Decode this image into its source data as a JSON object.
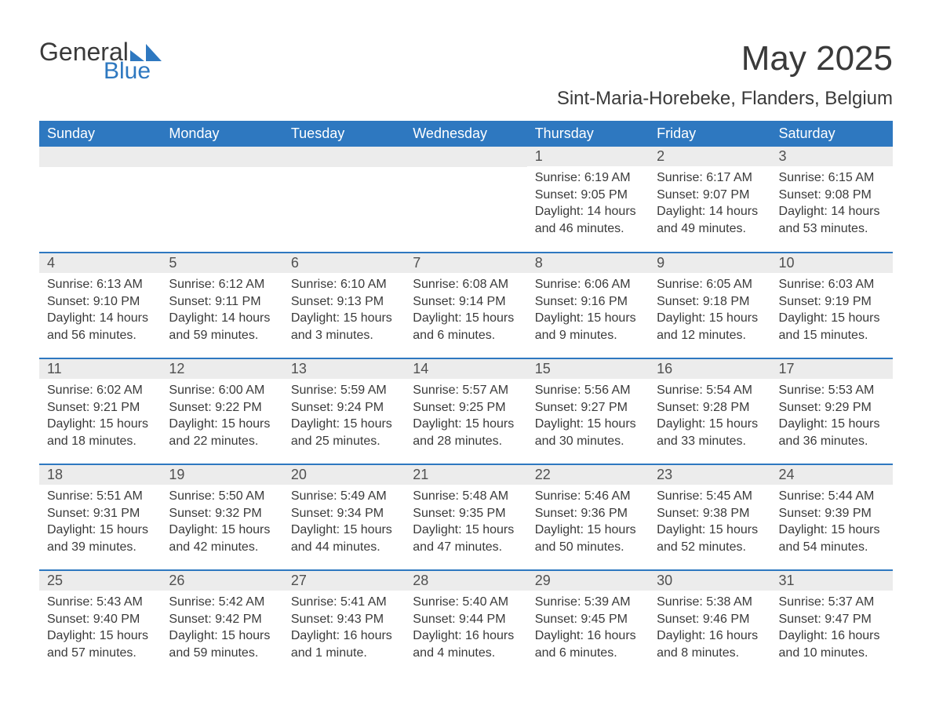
{
  "logo": {
    "general": "General",
    "blue": "Blue",
    "shape_color": "#2e78c0"
  },
  "title": "May 2025",
  "location": "Sint-Maria-Horebeke, Flanders, Belgium",
  "colors": {
    "header_bg": "#2e78c0",
    "header_text": "#ffffff",
    "daynum_bg": "#ececec",
    "row_divider": "#2e78c0",
    "body_text": "#3a3a3a"
  },
  "weekdays": [
    "Sunday",
    "Monday",
    "Tuesday",
    "Wednesday",
    "Thursday",
    "Friday",
    "Saturday"
  ],
  "weeks": [
    [
      null,
      null,
      null,
      null,
      {
        "n": "1",
        "sr": "6:19 AM",
        "ss": "9:05 PM",
        "dl": "14 hours and 46 minutes."
      },
      {
        "n": "2",
        "sr": "6:17 AM",
        "ss": "9:07 PM",
        "dl": "14 hours and 49 minutes."
      },
      {
        "n": "3",
        "sr": "6:15 AM",
        "ss": "9:08 PM",
        "dl": "14 hours and 53 minutes."
      }
    ],
    [
      {
        "n": "4",
        "sr": "6:13 AM",
        "ss": "9:10 PM",
        "dl": "14 hours and 56 minutes."
      },
      {
        "n": "5",
        "sr": "6:12 AM",
        "ss": "9:11 PM",
        "dl": "14 hours and 59 minutes."
      },
      {
        "n": "6",
        "sr": "6:10 AM",
        "ss": "9:13 PM",
        "dl": "15 hours and 3 minutes."
      },
      {
        "n": "7",
        "sr": "6:08 AM",
        "ss": "9:14 PM",
        "dl": "15 hours and 6 minutes."
      },
      {
        "n": "8",
        "sr": "6:06 AM",
        "ss": "9:16 PM",
        "dl": "15 hours and 9 minutes."
      },
      {
        "n": "9",
        "sr": "6:05 AM",
        "ss": "9:18 PM",
        "dl": "15 hours and 12 minutes."
      },
      {
        "n": "10",
        "sr": "6:03 AM",
        "ss": "9:19 PM",
        "dl": "15 hours and 15 minutes."
      }
    ],
    [
      {
        "n": "11",
        "sr": "6:02 AM",
        "ss": "9:21 PM",
        "dl": "15 hours and 18 minutes."
      },
      {
        "n": "12",
        "sr": "6:00 AM",
        "ss": "9:22 PM",
        "dl": "15 hours and 22 minutes."
      },
      {
        "n": "13",
        "sr": "5:59 AM",
        "ss": "9:24 PM",
        "dl": "15 hours and 25 minutes."
      },
      {
        "n": "14",
        "sr": "5:57 AM",
        "ss": "9:25 PM",
        "dl": "15 hours and 28 minutes."
      },
      {
        "n": "15",
        "sr": "5:56 AM",
        "ss": "9:27 PM",
        "dl": "15 hours and 30 minutes."
      },
      {
        "n": "16",
        "sr": "5:54 AM",
        "ss": "9:28 PM",
        "dl": "15 hours and 33 minutes."
      },
      {
        "n": "17",
        "sr": "5:53 AM",
        "ss": "9:29 PM",
        "dl": "15 hours and 36 minutes."
      }
    ],
    [
      {
        "n": "18",
        "sr": "5:51 AM",
        "ss": "9:31 PM",
        "dl": "15 hours and 39 minutes."
      },
      {
        "n": "19",
        "sr": "5:50 AM",
        "ss": "9:32 PM",
        "dl": "15 hours and 42 minutes."
      },
      {
        "n": "20",
        "sr": "5:49 AM",
        "ss": "9:34 PM",
        "dl": "15 hours and 44 minutes."
      },
      {
        "n": "21",
        "sr": "5:48 AM",
        "ss": "9:35 PM",
        "dl": "15 hours and 47 minutes."
      },
      {
        "n": "22",
        "sr": "5:46 AM",
        "ss": "9:36 PM",
        "dl": "15 hours and 50 minutes."
      },
      {
        "n": "23",
        "sr": "5:45 AM",
        "ss": "9:38 PM",
        "dl": "15 hours and 52 minutes."
      },
      {
        "n": "24",
        "sr": "5:44 AM",
        "ss": "9:39 PM",
        "dl": "15 hours and 54 minutes."
      }
    ],
    [
      {
        "n": "25",
        "sr": "5:43 AM",
        "ss": "9:40 PM",
        "dl": "15 hours and 57 minutes."
      },
      {
        "n": "26",
        "sr": "5:42 AM",
        "ss": "9:42 PM",
        "dl": "15 hours and 59 minutes."
      },
      {
        "n": "27",
        "sr": "5:41 AM",
        "ss": "9:43 PM",
        "dl": "16 hours and 1 minute."
      },
      {
        "n": "28",
        "sr": "5:40 AM",
        "ss": "9:44 PM",
        "dl": "16 hours and 4 minutes."
      },
      {
        "n": "29",
        "sr": "5:39 AM",
        "ss": "9:45 PM",
        "dl": "16 hours and 6 minutes."
      },
      {
        "n": "30",
        "sr": "5:38 AM",
        "ss": "9:46 PM",
        "dl": "16 hours and 8 minutes."
      },
      {
        "n": "31",
        "sr": "5:37 AM",
        "ss": "9:47 PM",
        "dl": "16 hours and 10 minutes."
      }
    ]
  ],
  "labels": {
    "sunrise": "Sunrise: ",
    "sunset": "Sunset: ",
    "daylight": "Daylight: "
  }
}
